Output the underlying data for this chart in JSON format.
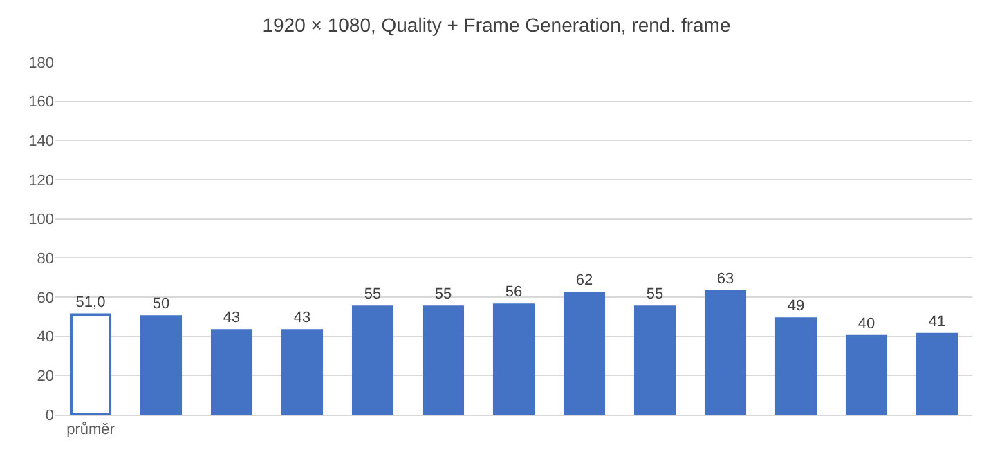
{
  "chart_data": {
    "type": "bar",
    "title": "1920 × 1080, Quality + Frame Generation, rend. frame",
    "categories": [
      "průměr",
      null,
      null,
      null,
      null,
      null,
      null,
      null,
      null,
      null,
      null,
      null,
      null
    ],
    "values": [
      51.0,
      50,
      43,
      43,
      55,
      55,
      56,
      62,
      55,
      63,
      49,
      40,
      41
    ],
    "value_labels": [
      "51,0",
      "50",
      "43",
      "43",
      "55",
      "55",
      "56",
      "62",
      "55",
      "63",
      "49",
      "40",
      "41"
    ],
    "color": "#4472c4",
    "colors": [
      "#ffffff",
      "#4472c4",
      "#4472c4",
      "#4472c4",
      "#4472c4",
      "#4472c4",
      "#4472c4",
      "#4472c4",
      "#4472c4",
      "#4472c4",
      "#4472c4",
      "#4472c4",
      "#4472c4"
    ],
    "ylim": [
      0,
      180
    ],
    "yticks": [
      0,
      20,
      40,
      60,
      80,
      100,
      120,
      140,
      160,
      180
    ],
    "grid": "y"
  }
}
